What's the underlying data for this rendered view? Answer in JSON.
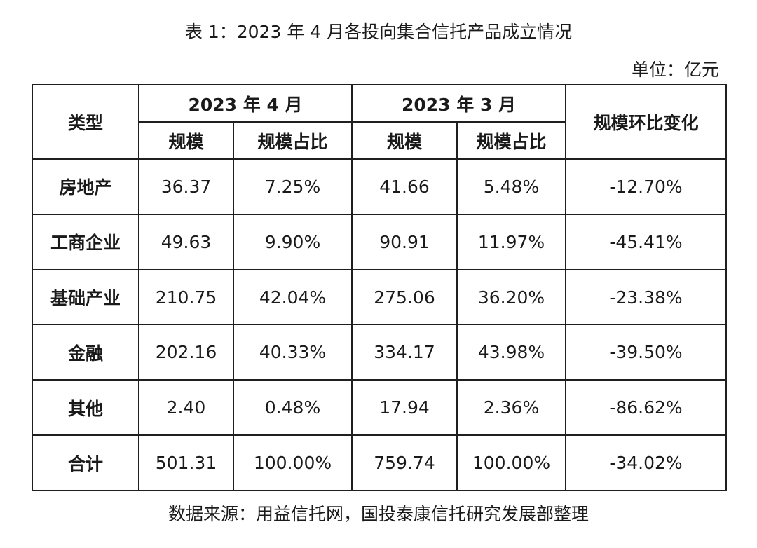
{
  "title": "表 1：2023 年 4 月各投向集合信托产品成立情况",
  "unit": "单位：亿元",
  "headers": {
    "type": "类型",
    "apr": "2023 年 4 月",
    "mar": "2023 年 3 月",
    "scale": "规模",
    "share": "规模占比",
    "change": "规模环比变化"
  },
  "rows": [
    {
      "type": "房地产",
      "apr_scale": "36.37",
      "apr_share": "7.25%",
      "mar_scale": "41.66",
      "mar_share": "5.48%",
      "change": "-12.70%"
    },
    {
      "type": "工商企业",
      "apr_scale": "49.63",
      "apr_share": "9.90%",
      "mar_scale": "90.91",
      "mar_share": "11.97%",
      "change": "-45.41%"
    },
    {
      "type": "基础产业",
      "apr_scale": "210.75",
      "apr_share": "42.04%",
      "mar_scale": "275.06",
      "mar_share": "36.20%",
      "change": "-23.38%"
    },
    {
      "type": "金融",
      "apr_scale": "202.16",
      "apr_share": "40.33%",
      "mar_scale": "334.17",
      "mar_share": "43.98%",
      "change": "-39.50%"
    },
    {
      "type": "其他",
      "apr_scale": "2.40",
      "apr_share": "0.48%",
      "mar_scale": "17.94",
      "mar_share": "2.36%",
      "change": "-86.62%"
    },
    {
      "type": "合计",
      "apr_scale": "501.31",
      "apr_share": "100.00%",
      "mar_scale": "759.74",
      "mar_share": "100.00%",
      "change": "-34.02%"
    }
  ],
  "source": "数据来源：用益信托网，国投泰康信托研究发展部整理"
}
